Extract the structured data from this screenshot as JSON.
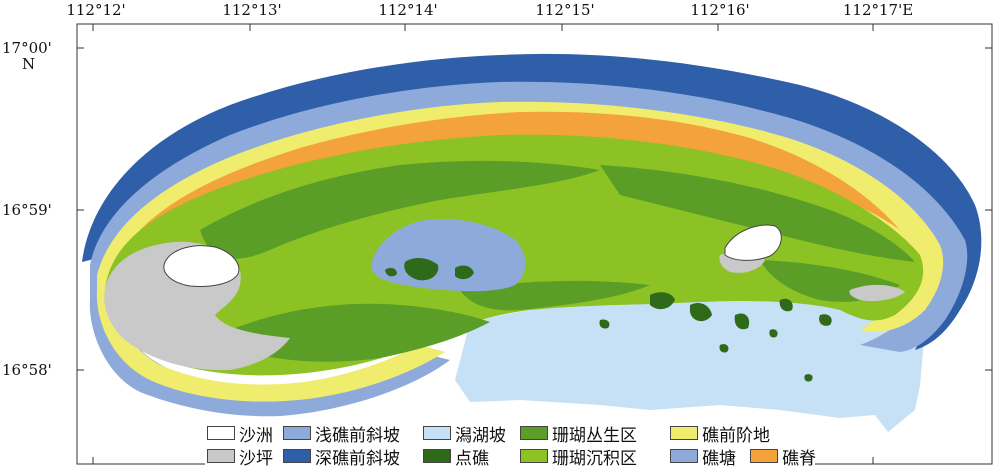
{
  "map": {
    "lon_labels": [
      "112°12'",
      "112°13'",
      "112°14'",
      "112°15'",
      "112°16'",
      "112°17'E"
    ],
    "lat_labels": [
      "17°00'",
      "16°59'",
      "16°58'"
    ],
    "north_label": "N",
    "colors": {
      "sand_cay": "#ffffff",
      "shallow_fore_reef_slope": "#8eaadb",
      "lagoon_slope": "#c6e0f5",
      "coral_growth_zone": "#5a9e28",
      "reef_flat_front": "#f0ec6e",
      "sand_flat": "#c9c9c9",
      "deep_fore_reef_slope": "#2f5fa8",
      "patch_reef": "#2e6a1a",
      "coral_sediment_zone": "#8cc224",
      "reef_pond": "#8eaadb",
      "reef_crest": "#f4a23c"
    }
  },
  "legend": {
    "items": [
      {
        "label": "沙洲",
        "color": "#ffffff"
      },
      {
        "label": "浅礁前斜坡",
        "color": "#8eaadb"
      },
      {
        "label": "潟湖坡",
        "color": "#c6e0f5"
      },
      {
        "label": "珊瑚丛生区",
        "color": "#5a9e28"
      },
      {
        "label": "礁前阶地",
        "color": "#f0ec6e"
      },
      {
        "label": "沙坪",
        "color": "#c9c9c9"
      },
      {
        "label": "深礁前斜坡",
        "color": "#2f5fa8"
      },
      {
        "label": "点礁",
        "color": "#2e6a1a"
      },
      {
        "label": "珊瑚沉积区",
        "color": "#8cc224"
      },
      {
        "label": "礁塘",
        "color": "#8eaadb"
      },
      {
        "label": "礁脊",
        "color": "#f4a23c"
      }
    ]
  }
}
